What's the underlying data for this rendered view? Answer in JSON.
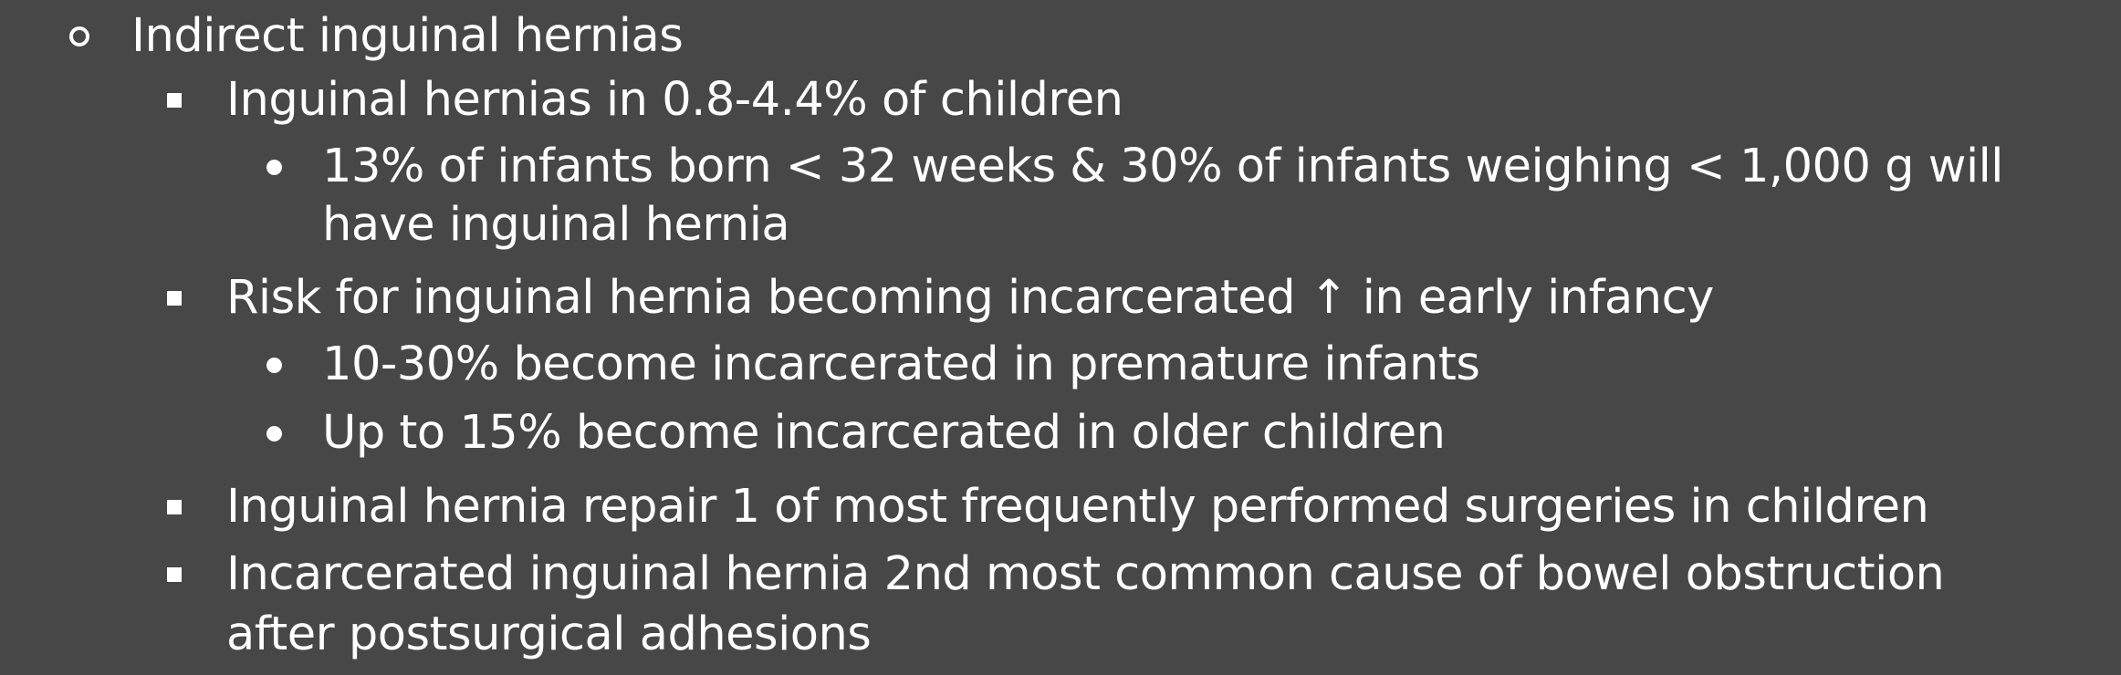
{
  "outline": {
    "level1": {
      "marker_icon": "hollow-circle-bullet-icon",
      "text": "Indirect inguinal hernias"
    },
    "points": [
      {
        "text": "Inguinal hernias in 0.8-4.4% of children",
        "subpoints": [
          {
            "line1": "13% of infants born < 32 weeks & 30% of infants weighing < 1,000 g will",
            "line2": "have inguinal hernia"
          }
        ]
      },
      {
        "text": "Risk for inguinal hernia becoming incarcerated ↑ in early infancy",
        "subpoints": [
          {
            "text": "10-30% become incarcerated in premature infants"
          },
          {
            "text": "Up to 15% become incarcerated in older children"
          }
        ]
      },
      {
        "text": "Inguinal hernia repair 1 of most frequently performed surgeries in children"
      },
      {
        "line1": "Incarcerated inguinal hernia 2nd most common cause of bowel obstruction",
        "line2": "after postsurgical adhesions"
      }
    ],
    "colors": {
      "background": "#474747",
      "text": "#ffffff"
    }
  }
}
